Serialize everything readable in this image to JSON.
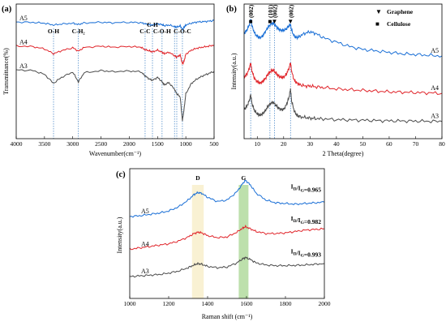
{
  "colors": {
    "A3": "#4a4a4a",
    "A4": "#e0242a",
    "A5": "#1a6fd6",
    "band_d": "#f7ecc4",
    "band_g": "#a7d690",
    "guide": "#3b7fc4"
  },
  "chart_data": [
    {
      "type": "line",
      "panel": "(a)",
      "xlabel": "Wavenumber(cm⁻¹)",
      "ylabel": "Transmittance(%)",
      "xlim": [
        4000,
        500
      ],
      "x_reversed": true,
      "xticks": [
        4000,
        3500,
        3000,
        2500,
        2000,
        1500,
        1000,
        500
      ],
      "annotations": [
        {
          "text": "O-H",
          "x": 3340
        },
        {
          "text": "C-H₂",
          "x": 2900
        },
        {
          "text": "C-C",
          "x": 1720
        },
        {
          "text": "C-H",
          "x": 1590
        },
        {
          "text": "C-O-H",
          "x": 1420
        },
        {
          "text": "C-O-C",
          "x": 1060
        }
      ],
      "guide_lines": [
        3340,
        2900,
        1720,
        1590,
        1420,
        1200,
        1160,
        1060
      ],
      "series": [
        {
          "name": "A5",
          "x": [
            4000,
            3700,
            3500,
            3340,
            3200,
            3000,
            2900,
            2800,
            2500,
            2300,
            2000,
            1800,
            1720,
            1650,
            1590,
            1500,
            1420,
            1380,
            1300,
            1200,
            1160,
            1100,
            1060,
            1030,
            1000,
            900,
            800,
            700,
            600,
            500
          ],
          "y": [
            0.88,
            0.877,
            0.872,
            0.86,
            0.866,
            0.872,
            0.863,
            0.874,
            0.878,
            0.875,
            0.878,
            0.876,
            0.868,
            0.862,
            0.858,
            0.868,
            0.862,
            0.855,
            0.86,
            0.85,
            0.845,
            0.855,
            0.83,
            0.845,
            0.86,
            0.872,
            0.88,
            0.882,
            0.885,
            0.89
          ]
        },
        {
          "name": "A4",
          "x": [
            4000,
            3700,
            3500,
            3340,
            3200,
            3000,
            2900,
            2800,
            2500,
            2300,
            2000,
            1800,
            1720,
            1650,
            1590,
            1500,
            1420,
            1380,
            1300,
            1200,
            1160,
            1100,
            1060,
            1030,
            1000,
            900,
            800,
            700,
            600,
            500
          ],
          "y": [
            0.72,
            0.715,
            0.7,
            0.668,
            0.688,
            0.708,
            0.685,
            0.71,
            0.718,
            0.712,
            0.716,
            0.712,
            0.695,
            0.688,
            0.68,
            0.692,
            0.678,
            0.668,
            0.678,
            0.655,
            0.645,
            0.66,
            0.6,
            0.62,
            0.665,
            0.692,
            0.705,
            0.712,
            0.718,
            0.726
          ]
        },
        {
          "name": "A3",
          "x": [
            4000,
            3700,
            3500,
            3340,
            3200,
            3000,
            2900,
            2800,
            2500,
            2300,
            2000,
            1800,
            1720,
            1650,
            1590,
            1500,
            1420,
            1380,
            1300,
            1200,
            1160,
            1100,
            1060,
            1030,
            1000,
            900,
            800,
            700,
            600,
            500
          ],
          "y": [
            0.56,
            0.555,
            0.53,
            0.47,
            0.51,
            0.545,
            0.48,
            0.54,
            0.555,
            0.548,
            0.552,
            0.548,
            0.52,
            0.5,
            0.49,
            0.51,
            0.48,
            0.46,
            0.475,
            0.43,
            0.4,
            0.38,
            0.22,
            0.3,
            0.4,
            0.47,
            0.5,
            0.52,
            0.535,
            0.55
          ]
        }
      ]
    },
    {
      "type": "line",
      "panel": "(b)",
      "xlabel": "2 Theta(degree)",
      "ylabel": "Intensity(a.u.)",
      "xlim": [
        5,
        80
      ],
      "xticks": [
        10,
        20,
        30,
        40,
        50,
        60,
        70,
        80
      ],
      "legend": [
        {
          "symbol": "▼",
          "text": "Graphene"
        },
        {
          "symbol": "■",
          "text": "Cellulose"
        }
      ],
      "legend_position": "top-right",
      "peak_labels": [
        {
          "text": "(002)",
          "x": 7.5,
          "symbol": "■"
        },
        {
          "text": "(101)",
          "x": 14.8,
          "symbol": "■"
        },
        {
          "text": "(002)",
          "x": 16.5,
          "symbol": "▼"
        },
        {
          "text": "(002)",
          "x": 22.6,
          "symbol": "▼"
        }
      ],
      "guide_lines": [
        7.5,
        14.8,
        16.5,
        22.6
      ],
      "series": [
        {
          "name": "A5",
          "x": [
            5,
            6,
            7,
            7.5,
            8,
            9,
            10,
            11,
            12,
            13,
            14,
            15,
            16,
            17,
            18,
            19,
            20,
            21,
            22,
            22.6,
            23,
            24,
            25,
            26,
            28,
            30,
            32,
            35,
            40,
            45,
            50,
            55,
            60,
            65,
            70,
            75,
            80
          ],
          "y": [
            0.82,
            0.84,
            0.88,
            0.92,
            0.87,
            0.82,
            0.8,
            0.79,
            0.8,
            0.83,
            0.86,
            0.88,
            0.89,
            0.87,
            0.85,
            0.84,
            0.84,
            0.85,
            0.87,
            0.88,
            0.84,
            0.8,
            0.79,
            0.8,
            0.82,
            0.83,
            0.82,
            0.79,
            0.76,
            0.73,
            0.71,
            0.7,
            0.69,
            0.68,
            0.675,
            0.67,
            0.665
          ]
        },
        {
          "name": "A4",
          "x": [
            5,
            6,
            7,
            7.5,
            8,
            9,
            10,
            11,
            12,
            13,
            14,
            15,
            16,
            17,
            18,
            19,
            20,
            21,
            22,
            22.6,
            23,
            24,
            25,
            26,
            28,
            30,
            32,
            35,
            40,
            45,
            50,
            55,
            60,
            65,
            70,
            75,
            80
          ],
          "y": [
            0.52,
            0.54,
            0.58,
            0.62,
            0.56,
            0.51,
            0.49,
            0.48,
            0.49,
            0.51,
            0.54,
            0.56,
            0.57,
            0.55,
            0.53,
            0.52,
            0.52,
            0.54,
            0.58,
            0.62,
            0.56,
            0.5,
            0.48,
            0.47,
            0.46,
            0.46,
            0.455,
            0.45,
            0.44,
            0.435,
            0.43,
            0.425,
            0.42,
            0.418,
            0.415,
            0.413,
            0.41
          ]
        },
        {
          "name": "A3",
          "x": [
            5,
            6,
            7,
            7.5,
            8,
            9,
            10,
            11,
            12,
            13,
            14,
            15,
            16,
            17,
            18,
            19,
            20,
            21,
            22,
            22.6,
            23,
            24,
            25,
            26,
            28,
            30,
            32,
            35,
            40,
            45,
            50,
            55,
            60,
            65,
            70,
            75,
            80
          ],
          "y": [
            0.3,
            0.32,
            0.36,
            0.4,
            0.34,
            0.29,
            0.27,
            0.26,
            0.27,
            0.29,
            0.32,
            0.34,
            0.35,
            0.33,
            0.31,
            0.3,
            0.3,
            0.33,
            0.38,
            0.44,
            0.36,
            0.29,
            0.26,
            0.25,
            0.245,
            0.24,
            0.238,
            0.235,
            0.23,
            0.228,
            0.226,
            0.224,
            0.222,
            0.221,
            0.22,
            0.219,
            0.218
          ]
        }
      ]
    },
    {
      "type": "line",
      "panel": "(c)",
      "xlabel": "Raman shift (cm⁻¹)",
      "ylabel": "Intensity(a.u.)",
      "xlim": [
        1000,
        2000
      ],
      "xticks": [
        1000,
        1200,
        1400,
        1600,
        1800,
        2000
      ],
      "bands": [
        {
          "text": "D",
          "x_min": 1320,
          "x_max": 1380
        },
        {
          "text": "G",
          "x_min": 1560,
          "x_max": 1610
        }
      ],
      "ratio_labels": [
        {
          "series": "A5",
          "text": "I",
          "sub_d": "D",
          "mid": "/I",
          "sub_g": "G",
          "value": "=0.965"
        },
        {
          "series": "A4",
          "text": "I",
          "sub_d": "D",
          "mid": "/I",
          "sub_g": "G",
          "value": "=0.982"
        },
        {
          "series": "A3",
          "text": "I",
          "sub_d": "D",
          "mid": "/I",
          "sub_g": "G",
          "value": "=0.993"
        }
      ],
      "series": [
        {
          "name": "A5",
          "x": [
            1000,
            1050,
            1100,
            1150,
            1200,
            1250,
            1300,
            1330,
            1350,
            1370,
            1400,
            1450,
            1500,
            1550,
            1580,
            1595,
            1620,
            1650,
            1700,
            1750,
            1800,
            1850,
            1900,
            1950,
            2000
          ],
          "y": [
            0.7,
            0.705,
            0.715,
            0.725,
            0.74,
            0.77,
            0.82,
            0.86,
            0.875,
            0.87,
            0.84,
            0.81,
            0.82,
            0.88,
            0.94,
            0.965,
            0.93,
            0.87,
            0.82,
            0.8,
            0.795,
            0.79,
            0.795,
            0.8,
            0.805
          ]
        },
        {
          "name": "A4",
          "x": [
            1000,
            1050,
            1100,
            1150,
            1200,
            1250,
            1300,
            1330,
            1350,
            1370,
            1400,
            1450,
            1500,
            1550,
            1580,
            1595,
            1620,
            1650,
            1700,
            1750,
            1800,
            1850,
            1900,
            1950,
            2000
          ],
          "y": [
            0.46,
            0.47,
            0.48,
            0.49,
            0.5,
            0.52,
            0.55,
            0.575,
            0.585,
            0.58,
            0.56,
            0.545,
            0.55,
            0.585,
            0.615,
            0.625,
            0.61,
            0.59,
            0.575,
            0.575,
            0.58,
            0.59,
            0.6,
            0.605,
            0.61
          ]
        },
        {
          "name": "A3",
          "x": [
            1000,
            1050,
            1100,
            1150,
            1200,
            1250,
            1300,
            1330,
            1350,
            1370,
            1400,
            1450,
            1500,
            1550,
            1580,
            1595,
            1620,
            1650,
            1700,
            1750,
            1800,
            1850,
            1900,
            1950,
            2000
          ],
          "y": [
            0.26,
            0.265,
            0.27,
            0.275,
            0.285,
            0.3,
            0.325,
            0.345,
            0.355,
            0.35,
            0.335,
            0.325,
            0.33,
            0.36,
            0.39,
            0.4,
            0.385,
            0.36,
            0.345,
            0.34,
            0.34,
            0.342,
            0.345,
            0.35,
            0.355
          ]
        }
      ]
    }
  ]
}
